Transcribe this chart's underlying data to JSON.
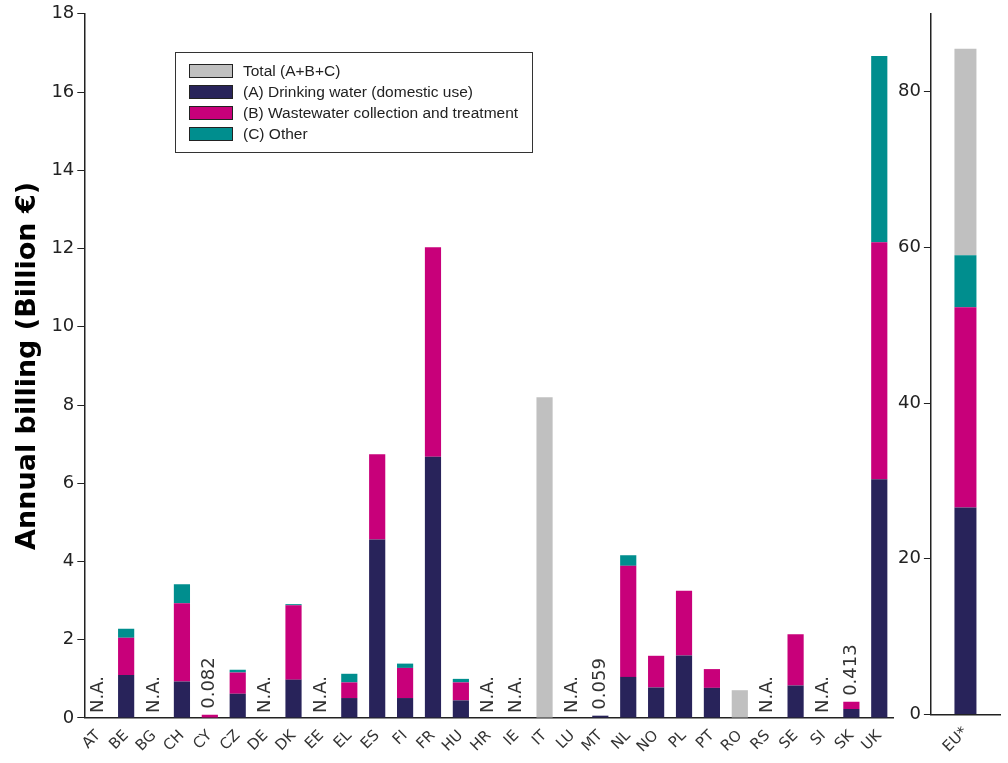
{
  "chart_data": [
    {
      "type": "bar",
      "ylabel": "Annual billing (Billion €)",
      "stacked": true,
      "legend": "top left",
      "categories": [
        "AT",
        "BE",
        "BG",
        "CH",
        "CY",
        "CZ",
        "DE",
        "DK",
        "EE",
        "EL",
        "ES",
        "FI",
        "FR",
        "HU",
        "HR",
        "IE",
        "IT",
        "LU",
        "MT",
        "NL",
        "NO",
        "PL",
        "PT",
        "RO",
        "RS",
        "SE",
        "SI",
        "SK",
        "UK"
      ],
      "series": [
        {
          "name": "Total (A+B+C)",
          "color": "#c0c0c0",
          "values": [
            null,
            null,
            null,
            null,
            null,
            null,
            null,
            null,
            null,
            null,
            null,
            null,
            null,
            null,
            null,
            null,
            8.2,
            null,
            null,
            null,
            null,
            null,
            null,
            0.71,
            null,
            null,
            null,
            null,
            null
          ]
        },
        {
          "name": "(A) Drinking water (domestic use)",
          "color": "#28235a",
          "value_labels": [
            "N.A.",
            null,
            "N.A.",
            null,
            null,
            null,
            "N.A.",
            null,
            "N.A.",
            null,
            null,
            null,
            null,
            null,
            "N.A.",
            "N.A.",
            null,
            "N.A.",
            null,
            null,
            null,
            null,
            null,
            null,
            "N.A.",
            null,
            "N.A.",
            null,
            null
          ],
          "values": [
            null,
            1.1,
            null,
            0.93,
            null,
            0.62,
            null,
            0.98,
            null,
            0.51,
            4.56,
            0.51,
            6.68,
            0.45,
            null,
            null,
            null,
            null,
            0.059,
            1.05,
            0.78,
            1.6,
            0.77,
            null,
            null,
            0.83,
            null,
            0.23,
            6.1
          ]
        },
        {
          "name": "(B) Wastewater collection and treatment",
          "color": "#c8007a",
          "values": [
            null,
            0.95,
            null,
            2.0,
            0.082,
            0.54,
            null,
            1.9,
            null,
            0.4,
            2.18,
            0.77,
            5.35,
            0.46,
            null,
            null,
            null,
            null,
            null,
            2.84,
            0.81,
            1.65,
            0.48,
            null,
            null,
            1.31,
            null,
            0.183,
            6.06
          ]
        },
        {
          "name": "(C) Other",
          "color": "#008e8e",
          "values": [
            null,
            0.23,
            null,
            0.49,
            null,
            0.07,
            null,
            0.03,
            null,
            0.22,
            null,
            0.11,
            null,
            0.09,
            null,
            null,
            null,
            null,
            null,
            0.27,
            null,
            null,
            null,
            null,
            null,
            null,
            null,
            null,
            4.76
          ]
        }
      ],
      "totals": [
        null,
        null,
        null,
        null,
        "0.082",
        null,
        null,
        null,
        null,
        null,
        null,
        null,
        null,
        null,
        null,
        null,
        null,
        null,
        "0.059",
        null,
        null,
        null,
        null,
        null,
        null,
        null,
        null,
        "0.413",
        null
      ],
      "ylim": [
        0,
        18
      ],
      "yticks": [
        0,
        2,
        4,
        6,
        8,
        10,
        12,
        14,
        16,
        18
      ]
    },
    {
      "type": "bar",
      "stacked": true,
      "categories": [
        "EU*"
      ],
      "series": [
        {
          "color": "#28235a",
          "values": [
            26.6
          ]
        },
        {
          "color": "#c8007a",
          "values": [
            25.7
          ]
        },
        {
          "color": "#008e8e",
          "values": [
            6.7
          ]
        },
        {
          "color": "#c0c0c0",
          "values": [
            26.5
          ]
        }
      ],
      "ylim": [
        0,
        90
      ],
      "yticks": [
        0,
        20,
        40,
        60,
        80
      ]
    }
  ]
}
